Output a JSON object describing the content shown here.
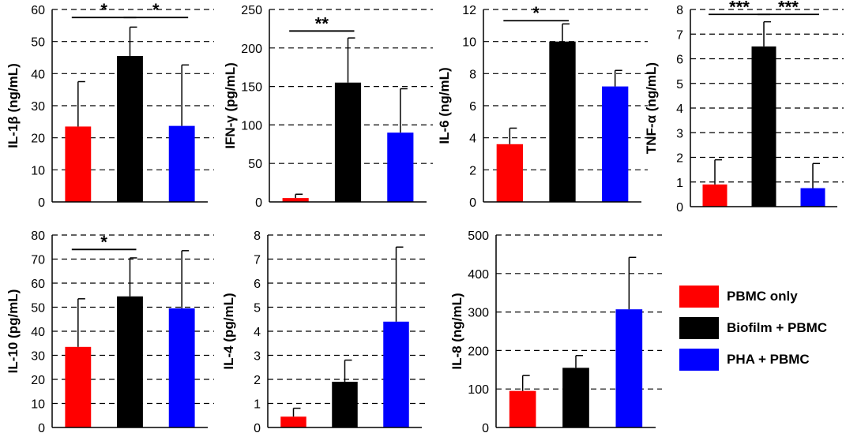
{
  "chart_data": [
    {
      "type": "bar",
      "id": "il1b",
      "ylabel": "IL-1β (ng/mL)",
      "ylim": [
        0,
        60
      ],
      "yticks": [
        0,
        10,
        20,
        30,
        40,
        50,
        60
      ],
      "grid": true,
      "categories": [
        "PBMC only",
        "Biofilm + PBMC",
        "PHA + PBMC"
      ],
      "values": [
        23.5,
        45.5,
        23.7
      ],
      "errors": [
        14,
        9,
        19
      ],
      "significance": [
        {
          "from": 0,
          "to": 1,
          "label": "*",
          "y": 57.5
        },
        {
          "from": 1,
          "to": 2,
          "label": "*",
          "y": 57.5
        }
      ]
    },
    {
      "type": "bar",
      "id": "ifng",
      "ylabel": "IFN-γ (pg/mL)",
      "ylim": [
        0,
        250
      ],
      "yticks": [
        0,
        50,
        100,
        150,
        200,
        250
      ],
      "grid": true,
      "categories": [
        "PBMC only",
        "Biofilm + PBMC",
        "PHA + PBMC"
      ],
      "values": [
        5,
        155,
        90
      ],
      "errors": [
        5,
        58,
        57
      ],
      "significance": [
        {
          "from": 0,
          "to": 1,
          "label": "**",
          "y": 222
        }
      ]
    },
    {
      "type": "bar",
      "id": "il6",
      "ylabel": "IL-6 (ng/mL)",
      "ylim": [
        0,
        12
      ],
      "yticks": [
        0,
        2,
        4,
        6,
        8,
        10,
        12
      ],
      "grid": true,
      "categories": [
        "PBMC only",
        "Biofilm + PBMC",
        "PHA + PBMC"
      ],
      "values": [
        3.6,
        10,
        7.2
      ],
      "errors": [
        1.0,
        1.1,
        1.0
      ],
      "significance": [
        {
          "from": 0,
          "to": 1,
          "label": "*",
          "y": 11.3
        }
      ]
    },
    {
      "type": "bar",
      "id": "tnfa",
      "ylabel": "TNF-α (ng/mL)",
      "ylim": [
        0,
        8
      ],
      "yticks": [
        0,
        1,
        2,
        3,
        4,
        5,
        6,
        7,
        8
      ],
      "grid": true,
      "categories": [
        "PBMC only",
        "Biofilm + PBMC",
        "PHA + PBMC"
      ],
      "values": [
        0.9,
        6.5,
        0.75
      ],
      "errors": [
        1.0,
        1.0,
        1.0
      ],
      "significance": [
        {
          "from": 0,
          "to": 1,
          "label": "***",
          "y": 7.8
        },
        {
          "from": 1,
          "to": 2,
          "label": "***",
          "y": 7.8
        }
      ]
    },
    {
      "type": "bar",
      "id": "il10",
      "ylabel": "IL-10 (pg/mL)",
      "ylim": [
        0,
        80
      ],
      "yticks": [
        0,
        10,
        20,
        30,
        40,
        50,
        60,
        70,
        80
      ],
      "grid": true,
      "categories": [
        "PBMC only",
        "Biofilm + PBMC",
        "PHA + PBMC"
      ],
      "values": [
        33.5,
        54.5,
        49.5
      ],
      "errors": [
        20,
        16,
        24
      ],
      "significance": [
        {
          "from": 0,
          "to": 1,
          "label": "*",
          "y": 74
        }
      ]
    },
    {
      "type": "bar",
      "id": "il4",
      "ylabel": "IL-4 (pg/mL)",
      "ylim": [
        0,
        8
      ],
      "yticks": [
        0,
        1,
        2,
        3,
        4,
        5,
        6,
        7,
        8
      ],
      "grid": true,
      "categories": [
        "PBMC only",
        "Biofilm + PBMC",
        "PHA + PBMC"
      ],
      "values": [
        0.45,
        1.9,
        4.4
      ],
      "errors": [
        0.35,
        0.9,
        3.1
      ],
      "significance": []
    },
    {
      "type": "bar",
      "id": "il8",
      "ylabel": "IL-8 (ng/mL)",
      "ylim": [
        0,
        500
      ],
      "yticks": [
        0,
        100,
        200,
        300,
        400,
        500
      ],
      "grid": true,
      "categories": [
        "PBMC only",
        "Biofilm + PBMC",
        "PHA + PBMC"
      ],
      "values": [
        95,
        155,
        307
      ],
      "errors": [
        40,
        32,
        135
      ],
      "significance": []
    }
  ],
  "legend": {
    "position": "right",
    "items": [
      {
        "label": "PBMC only",
        "color": "#ff0000"
      },
      {
        "label": "Biofilm + PBMC",
        "color": "#000000"
      },
      {
        "label": "PHA + PBMC",
        "color": "#0000ff"
      }
    ]
  }
}
